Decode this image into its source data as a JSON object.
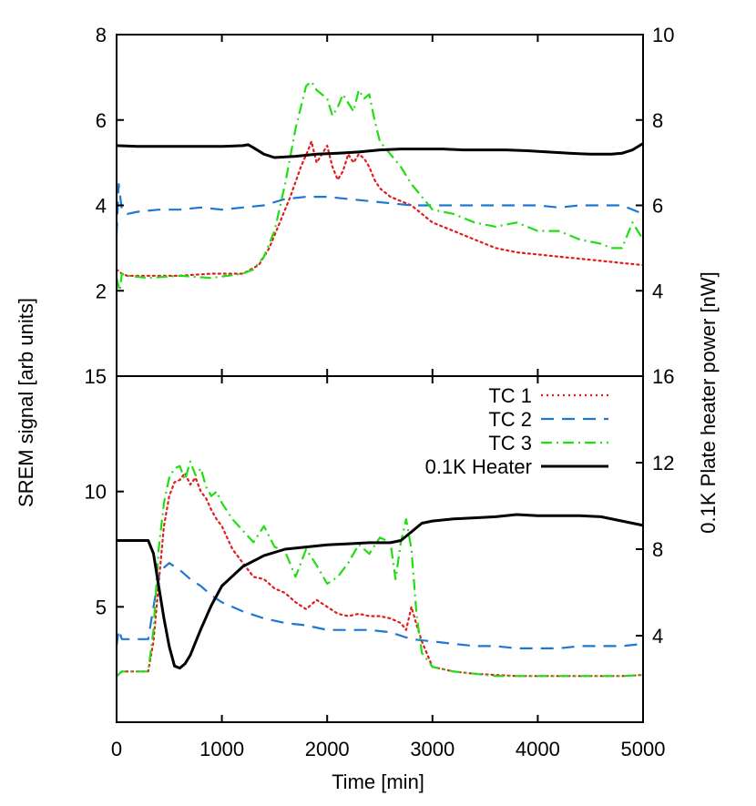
{
  "chart_data": [
    {
      "type": "line",
      "panel": "top",
      "xlim": [
        0,
        5000
      ],
      "ylim_left": [
        0,
        8
      ],
      "ylim_right": [
        2,
        10
      ],
      "xticks": [
        0,
        1000,
        2000,
        3000,
        4000,
        5000
      ],
      "yticks_left": [
        2,
        4,
        6,
        8
      ],
      "yticks_right": [
        4,
        6,
        8,
        10
      ],
      "series": [
        {
          "name": "TC 1",
          "axis": "left",
          "color": "#e41a1c",
          "dash": "dotted",
          "x": [
            0,
            50,
            100,
            300,
            600,
            900,
            1200,
            1350,
            1450,
            1550,
            1650,
            1750,
            1820,
            1850,
            1900,
            1950,
            2000,
            2050,
            2100,
            2150,
            2200,
            2250,
            2300,
            2350,
            2400,
            2450,
            2500,
            2600,
            2700,
            2800,
            2900,
            3000,
            3200,
            3400,
            3600,
            3800,
            4000,
            4200,
            4400,
            4600,
            4800,
            5000
          ],
          "y": [
            2.5,
            2.4,
            2.35,
            2.35,
            2.35,
            2.4,
            2.4,
            2.6,
            3.0,
            3.6,
            4.2,
            4.9,
            5.3,
            5.5,
            5.0,
            5.2,
            5.4,
            4.9,
            4.6,
            4.8,
            5.2,
            5.0,
            5.2,
            5.1,
            4.9,
            4.6,
            4.4,
            4.2,
            4.1,
            4.0,
            3.8,
            3.6,
            3.4,
            3.2,
            3.0,
            2.9,
            2.85,
            2.8,
            2.75,
            2.7,
            2.65,
            2.6
          ]
        },
        {
          "name": "TC 2",
          "axis": "left",
          "color": "#1f77d4",
          "dash": "dashed",
          "x": [
            0,
            20,
            50,
            100,
            200,
            400,
            600,
            800,
            1000,
            1200,
            1400,
            1600,
            1800,
            2000,
            2200,
            2400,
            2600,
            2800,
            3000,
            3200,
            3400,
            3600,
            3800,
            4000,
            4200,
            4400,
            4600,
            4800,
            5000
          ],
          "y": [
            3.3,
            4.5,
            3.9,
            3.8,
            3.85,
            3.9,
            3.9,
            3.95,
            3.9,
            3.95,
            4.0,
            4.15,
            4.2,
            4.2,
            4.15,
            4.1,
            4.05,
            4.0,
            4.0,
            4.0,
            4.0,
            4.0,
            4.0,
            4.0,
            3.95,
            4.0,
            4.0,
            4.0,
            3.8
          ]
        },
        {
          "name": "TC 3",
          "axis": "left",
          "color": "#22dd11",
          "dash": "dashdot",
          "x": [
            0,
            30,
            50,
            100,
            300,
            600,
            900,
            1200,
            1300,
            1400,
            1500,
            1600,
            1700,
            1800,
            1850,
            1900,
            1950,
            2000,
            2050,
            2100,
            2150,
            2200,
            2250,
            2300,
            2350,
            2400,
            2450,
            2500,
            2600,
            2700,
            2800,
            2900,
            3000,
            3200,
            3400,
            3600,
            3800,
            4000,
            4200,
            4400,
            4600,
            4700,
            4800,
            4900,
            5000
          ],
          "y": [
            2.3,
            2.0,
            2.4,
            2.35,
            2.3,
            2.35,
            2.3,
            2.4,
            2.5,
            2.8,
            3.4,
            4.5,
            5.8,
            6.8,
            6.9,
            6.7,
            6.6,
            6.5,
            6.1,
            6.3,
            6.6,
            6.4,
            6.2,
            6.7,
            6.5,
            6.6,
            6.0,
            5.5,
            5.2,
            4.9,
            4.5,
            4.2,
            3.9,
            3.8,
            3.6,
            3.5,
            3.6,
            3.4,
            3.4,
            3.2,
            3.1,
            3.0,
            3.0,
            3.6,
            3.2
          ]
        },
        {
          "name": "0.1K Heater",
          "axis": "right",
          "color": "#000000",
          "dash": "solid",
          "x": [
            0,
            200,
            500,
            800,
            1000,
            1200,
            1250,
            1300,
            1400,
            1500,
            1700,
            1900,
            2100,
            2300,
            2500,
            2700,
            2900,
            3100,
            3300,
            3500,
            3700,
            3900,
            4100,
            4300,
            4500,
            4700,
            4800,
            4900,
            5000
          ],
          "y": [
            7.4,
            7.38,
            7.38,
            7.38,
            7.38,
            7.4,
            7.42,
            7.35,
            7.2,
            7.12,
            7.15,
            7.2,
            7.22,
            7.25,
            7.3,
            7.32,
            7.32,
            7.32,
            7.3,
            7.3,
            7.3,
            7.28,
            7.25,
            7.22,
            7.2,
            7.2,
            7.22,
            7.3,
            7.45
          ]
        }
      ]
    },
    {
      "type": "line",
      "panel": "bottom",
      "xlim": [
        0,
        5000
      ],
      "ylim_left": [
        0,
        15
      ],
      "ylim_right": [
        0,
        16
      ],
      "xticks": [
        0,
        1000,
        2000,
        3000,
        4000,
        5000
      ],
      "yticks_left": [
        5,
        10,
        15
      ],
      "yticks_right": [
        4,
        8,
        12,
        16
      ],
      "legend": [
        "TC 1",
        "TC 2",
        "TC 3",
        "0.1K Heater"
      ],
      "legend_position": "top-right",
      "series": [
        {
          "name": "TC 1",
          "axis": "left",
          "color": "#e41a1c",
          "dash": "dotted",
          "x": [
            0,
            50,
            300,
            350,
            400,
            450,
            500,
            550,
            600,
            650,
            700,
            750,
            800,
            850,
            900,
            950,
            1000,
            1100,
            1200,
            1300,
            1400,
            1500,
            1600,
            1700,
            1800,
            1900,
            2000,
            2100,
            2200,
            2300,
            2400,
            2500,
            2600,
            2700,
            2750,
            2800,
            2850,
            2900,
            3000,
            3200,
            3400,
            3600,
            3800,
            4000,
            4200,
            4400,
            4600,
            4800,
            5000
          ],
          "y": [
            2.0,
            2.2,
            2.2,
            3.5,
            6.0,
            8.5,
            9.8,
            10.4,
            10.5,
            10.8,
            10.3,
            10.6,
            10.0,
            9.7,
            9.2,
            8.8,
            8.5,
            7.5,
            6.9,
            6.3,
            6.2,
            5.8,
            5.6,
            5.2,
            4.9,
            5.3,
            5.0,
            4.7,
            4.6,
            4.7,
            4.6,
            4.6,
            4.5,
            4.3,
            4.0,
            5.0,
            4.2,
            3.5,
            2.4,
            2.2,
            2.1,
            2.05,
            2.0,
            2.0,
            2.0,
            2.0,
            2.0,
            2.0,
            2.05
          ]
        },
        {
          "name": "TC 2",
          "axis": "left",
          "color": "#1f77d4",
          "dash": "dashed",
          "x": [
            0,
            20,
            50,
            300,
            350,
            400,
            450,
            500,
            600,
            700,
            800,
            900,
            1000,
            1200,
            1400,
            1600,
            1800,
            2000,
            2200,
            2400,
            2600,
            2800,
            3000,
            3200,
            3400,
            3600,
            3800,
            4000,
            4200,
            4400,
            4600,
            4800,
            5000
          ],
          "y": [
            3.3,
            4.0,
            3.6,
            3.6,
            5.0,
            6.3,
            6.7,
            6.9,
            6.6,
            6.2,
            5.9,
            5.5,
            5.2,
            4.8,
            4.5,
            4.3,
            4.2,
            4.0,
            4.0,
            4.0,
            3.9,
            3.6,
            3.5,
            3.4,
            3.3,
            3.3,
            3.2,
            3.2,
            3.2,
            3.3,
            3.3,
            3.3,
            3.4
          ]
        },
        {
          "name": "TC 3",
          "axis": "left",
          "color": "#22dd11",
          "dash": "dashdot",
          "x": [
            0,
            50,
            300,
            350,
            400,
            450,
            500,
            550,
            600,
            650,
            700,
            750,
            800,
            850,
            900,
            950,
            1000,
            1100,
            1200,
            1300,
            1400,
            1500,
            1600,
            1700,
            1800,
            1900,
            2000,
            2100,
            2200,
            2300,
            2400,
            2500,
            2600,
            2650,
            2700,
            2750,
            2800,
            2850,
            2900,
            3000,
            3200,
            3400,
            3600,
            3800,
            4000,
            4200,
            4400,
            4600,
            4800,
            5000
          ],
          "y": [
            2.0,
            2.2,
            2.2,
            4.0,
            7.5,
            9.5,
            10.6,
            11.0,
            11.1,
            10.5,
            11.3,
            10.7,
            11.0,
            10.2,
            9.8,
            10.0,
            9.5,
            8.8,
            8.3,
            7.8,
            8.5,
            7.6,
            7.4,
            6.3,
            7.5,
            6.8,
            6.0,
            6.3,
            6.9,
            7.7,
            7.3,
            8.0,
            7.8,
            6.2,
            7.8,
            8.8,
            7.5,
            4.6,
            3.0,
            2.4,
            2.2,
            2.1,
            2.0,
            2.0,
            2.0,
            2.0,
            2.0,
            2.0,
            2.0,
            2.05
          ]
        },
        {
          "name": "0.1K Heater",
          "axis": "right",
          "color": "#000000",
          "dash": "solid",
          "x": [
            0,
            300,
            350,
            400,
            450,
            500,
            550,
            600,
            650,
            700,
            750,
            800,
            900,
            1000,
            1200,
            1400,
            1600,
            1800,
            2000,
            2200,
            2400,
            2600,
            2700,
            2800,
            2900,
            3000,
            3200,
            3400,
            3600,
            3800,
            4000,
            4200,
            4400,
            4600,
            4800,
            5000
          ],
          "y": [
            8.4,
            8.4,
            7.8,
            6.3,
            4.8,
            3.5,
            2.6,
            2.5,
            2.7,
            3.1,
            3.7,
            4.3,
            5.4,
            6.3,
            7.2,
            7.7,
            8.0,
            8.1,
            8.2,
            8.25,
            8.3,
            8.3,
            8.4,
            8.8,
            9.2,
            9.3,
            9.4,
            9.45,
            9.5,
            9.6,
            9.55,
            9.55,
            9.55,
            9.5,
            9.3,
            9.1
          ]
        }
      ]
    }
  ],
  "axes": {
    "x_title": "Time [min]",
    "y_left_title": "SREM signal [arb units]",
    "y_right_title": "0.1K Plate heater power [nW]"
  }
}
